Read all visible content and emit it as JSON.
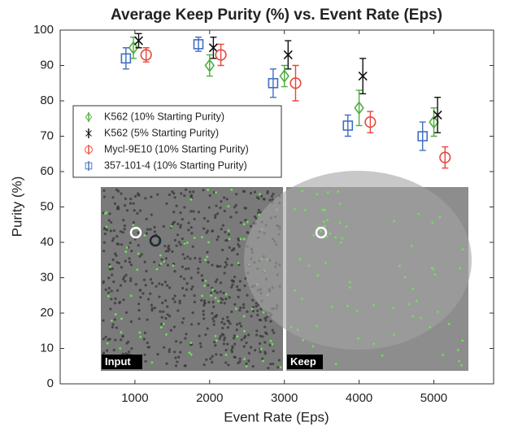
{
  "chart_data": {
    "type": "scatter",
    "title": "Average Keep Purity (%) vs. Event Rate (Eps)",
    "xlabel": "Event Rate (Eps)",
    "ylabel": "Purity (%)",
    "xlim": [
      0,
      5800
    ],
    "xticks": [
      1000,
      2000,
      3000,
      4000,
      5000
    ],
    "ylim": [
      0,
      100
    ],
    "yticks": [
      0,
      10,
      20,
      30,
      40,
      50,
      60,
      70,
      80,
      90,
      100
    ],
    "legend": "upper left",
    "series": [
      {
        "name": "K562 (10% Starting Purity)",
        "color": "#4dae3c",
        "marker": "diamond",
        "x": [
          980,
          2000,
          3000,
          4000,
          5000
        ],
        "values": [
          95,
          90,
          87,
          78,
          74
        ],
        "errors": [
          3,
          3,
          3,
          5,
          4
        ]
      },
      {
        "name": "K562 (5% Starting Purity)",
        "color": "#111111",
        "marker": "x",
        "x": [
          1050,
          2050,
          3050,
          4050,
          5050
        ],
        "values": [
          97,
          95,
          93,
          87,
          76
        ],
        "errors": [
          2,
          3,
          4,
          5,
          5
        ]
      },
      {
        "name": "Mycl-9E10 (10% Starting Purity)",
        "color": "#e8463c",
        "marker": "circle",
        "x": [
          1150,
          2150,
          3150,
          4150,
          5150
        ],
        "values": [
          93,
          93,
          85,
          74,
          64
        ],
        "errors": [
          2,
          3,
          5,
          3,
          3
        ]
      },
      {
        "name": "357-101-4 (10% Starting Purity)",
        "color": "#3f6fbf",
        "marker": "square",
        "x": [
          880,
          1850,
          2850,
          3850,
          4850
        ],
        "values": [
          92,
          96,
          85,
          73,
          70
        ],
        "errors": [
          3,
          2,
          4,
          3,
          4
        ]
      }
    ],
    "inset_labels": [
      "Input",
      "Keep"
    ]
  }
}
